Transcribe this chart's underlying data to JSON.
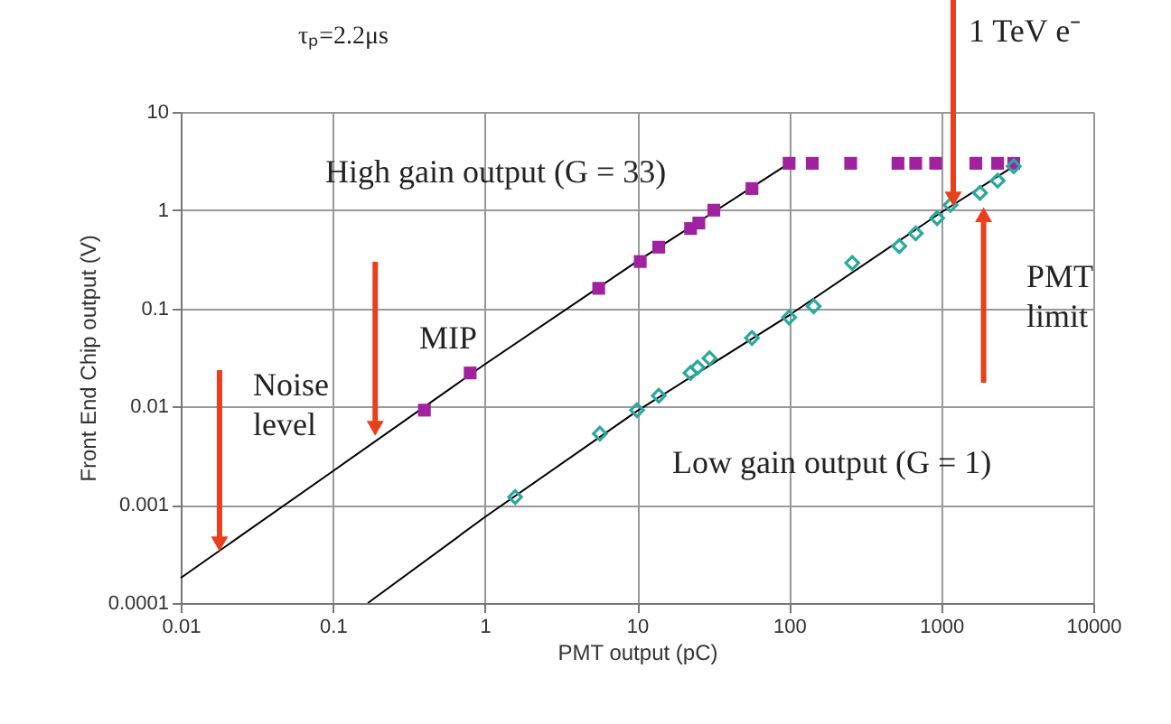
{
  "chart_data": {
    "type": "scatter",
    "xlabel": "PMT output (pC)",
    "ylabel": "Front End Chip output (V)",
    "log": "xy",
    "grid": true,
    "xlim": [
      0.01,
      10000
    ],
    "xticks": [
      0.01,
      0.1,
      1,
      10,
      100,
      1000,
      10000
    ],
    "ylim": [
      0.0001,
      10
    ],
    "yticks": [
      0.0001,
      0.001,
      0.01,
      0.1,
      1,
      10
    ],
    "series": [
      {
        "type": "line",
        "color": "#000000",
        "line_style": "solid",
        "marker": "none",
        "x": [
          0.01,
          0.1,
          1,
          10,
          100
        ],
        "values": [
          0.00018,
          0.0022,
          0.027,
          0.3,
          3
        ]
      },
      {
        "type": "line",
        "color": "#000000",
        "line_style": "solid",
        "marker": "none",
        "x": [
          0.17,
          1,
          10,
          100,
          1000,
          3000
        ],
        "values": [
          0.0001,
          0.00075,
          0.009,
          0.085,
          0.95,
          2.8
        ]
      },
      {
        "color": "#a0229e",
        "marker": "square",
        "x": [
          0.4,
          0.8,
          5.6,
          10.5,
          13.9,
          22.5,
          25.5,
          32,
          57,
          100,
          142,
          254,
          520,
          680,
          920,
          1690,
          2350,
          3000
        ],
        "values": [
          0.0092,
          0.022,
          0.16,
          0.3,
          0.42,
          0.65,
          0.74,
          1.0,
          1.66,
          3,
          3,
          3,
          3,
          3,
          3,
          3,
          3,
          3
        ]
      },
      {
        "color": "#2aa89e",
        "marker": "diamond",
        "x": [
          1.58,
          5.7,
          10,
          13.9,
          22.5,
          25,
          30,
          57,
          100,
          145,
          260,
          530,
          680,
          940,
          1150,
          1800,
          2350,
          3000
        ],
        "values": [
          0.0012,
          0.0053,
          0.0092,
          0.0129,
          0.022,
          0.025,
          0.031,
          0.05,
          0.081,
          0.105,
          0.29,
          0.43,
          0.58,
          0.83,
          1.13,
          1.5,
          2.0,
          2.8
        ]
      }
    ],
    "annotations": [
      "High gain output (G = 33)",
      "Low gain output (G = 1)",
      {
        "text": "Noise level",
        "x": 0.018,
        "y": 0.0004
      },
      {
        "text": "MIP",
        "x": 0.19,
        "y": 0.006
      },
      {
        "text": "PMT limit",
        "x": 1900,
        "y": 0.9
      },
      {
        "text": "1 TeV e⁻",
        "x": 1200,
        "y": 1.3
      },
      "τₚ=2.2μs"
    ]
  }
}
